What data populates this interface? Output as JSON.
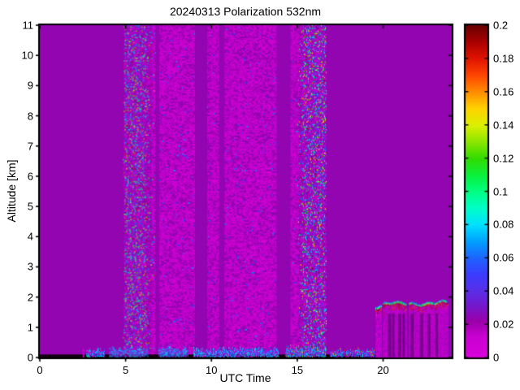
{
  "figure": {
    "background": "#FFFFFF",
    "axis_color": "#000000"
  },
  "chart_data": {
    "type": "heatmap",
    "title": "20240313 Polarization 532nm",
    "xlabel": "UTC Time",
    "ylabel": "Altitude [km]",
    "xlim": [
      0,
      24
    ],
    "ylim": [
      0,
      11
    ],
    "xtick_values": [
      0,
      5,
      10,
      15,
      20
    ],
    "xtick_labels": [
      "0",
      "5",
      "10",
      "15",
      "20"
    ],
    "ytick_values": [
      0,
      1,
      2,
      3,
      4,
      5,
      6,
      7,
      8,
      9,
      10,
      11
    ],
    "ytick_labels": [
      "0",
      "1",
      "2",
      "3",
      "4",
      "5",
      "6",
      "7",
      "8",
      "9",
      "10",
      "11"
    ],
    "grid": false,
    "colorbar": {
      "position": "right",
      "vmin": 0,
      "vmax": 0.2,
      "tick_values": [
        0,
        0.02,
        0.04,
        0.06,
        0.08,
        0.1,
        0.12,
        0.14,
        0.16,
        0.18,
        0.2
      ],
      "tick_labels": [
        "0",
        "0.02",
        "0.04",
        "0.06",
        "0.08",
        "0.1",
        "0.12",
        "0.14",
        "0.16",
        "0.18",
        "0.2"
      ],
      "colormap_stops": [
        [
          0.0,
          "#D900D9"
        ],
        [
          0.013,
          "#C900D2"
        ],
        [
          0.022,
          "#9A00A8"
        ],
        [
          0.03,
          "#7A14C8"
        ],
        [
          0.04,
          "#5A2EE6"
        ],
        [
          0.05,
          "#3C3CFF"
        ],
        [
          0.06,
          "#1E64FF"
        ],
        [
          0.07,
          "#00A0FF"
        ],
        [
          0.08,
          "#00E1FF"
        ],
        [
          0.09,
          "#00FFC8"
        ],
        [
          0.1,
          "#00FF82"
        ],
        [
          0.11,
          "#0AF03C"
        ],
        [
          0.12,
          "#32DC00"
        ],
        [
          0.13,
          "#8CE600"
        ],
        [
          0.14,
          "#DCF000"
        ],
        [
          0.15,
          "#FFD200"
        ],
        [
          0.16,
          "#FF8C00"
        ],
        [
          0.17,
          "#FF4600"
        ],
        [
          0.18,
          "#E11400"
        ],
        [
          0.19,
          "#AA0000"
        ],
        [
          0.2,
          "#690000"
        ]
      ]
    },
    "background_value": 0.024,
    "features": {
      "noise_bands": [
        {
          "t": [
            4.85,
            6.7
          ],
          "core": [
            4.95,
            5.95
          ],
          "alt": [
            0.12,
            11
          ],
          "peak_density": 0.85,
          "description": "full-column noisy band, speckle spanning 0-0.2"
        },
        {
          "t": [
            15.0,
            16.7
          ],
          "core": [
            15.35,
            16.6
          ],
          "alt": [
            0.12,
            11
          ],
          "peak_density": 0.85,
          "description": "full-column noisy band, speckle spanning 0-0.2"
        }
      ],
      "mid_speckle": {
        "t": [
          6.5,
          15.05
        ],
        "alt": [
          0.12,
          11
        ],
        "density": 0.5,
        "value_range": [
          0,
          0.022
        ],
        "rare_blue_prob": 0.03
      },
      "quiet_gaps": [
        [
          6.72,
          6.96
        ],
        [
          9.05,
          9.75
        ],
        [
          10.45,
          10.75
        ],
        [
          13.8,
          14.6
        ]
      ],
      "surface_dark_strip": {
        "t": [
          0,
          19.55
        ],
        "alt": [
          0,
          0.1
        ],
        "color": "#120012"
      },
      "pink_slivers": {
        "t": [
          2.5,
          2.85
        ],
        "alt": [
          0,
          0.3
        ],
        "value": 0.006
      },
      "boundary_layer_patches": [
        {
          "t": [
            2.7,
            3.75
          ],
          "top": 0.3,
          "hot": false
        },
        {
          "t": [
            4.05,
            6.3
          ],
          "top": 0.32,
          "hot": false
        },
        {
          "t": [
            6.9,
            8.65
          ],
          "top": 0.35,
          "hot": false
        },
        {
          "t": [
            8.95,
            13.9
          ],
          "top": 0.32,
          "hot": false
        },
        {
          "t": [
            14.3,
            16.65
          ],
          "top": 0.38,
          "hot": true
        },
        {
          "t": [
            16.9,
            19.5
          ],
          "top": 0.28,
          "hot": true
        }
      ],
      "cloud_layer": {
        "columns": [
          {
            "t": [
              19.55,
              19.92
            ],
            "top": 1.75
          },
          {
            "t": [
              20.0,
              21.35
            ],
            "top": 1.82
          },
          {
            "t": [
              21.52,
              23.75
            ],
            "top": 1.85
          }
        ],
        "body_value_range": [
          0.003,
          0.017
        ],
        "top_edge_value_range": [
          0.05,
          0.15
        ],
        "cap_value_range": [
          0.165,
          0.2
        ],
        "attenuation_streaks": [
          20.28,
          20.52,
          20.88,
          21.12,
          21.6,
          22.15,
          22.6,
          23.05
        ]
      }
    }
  }
}
